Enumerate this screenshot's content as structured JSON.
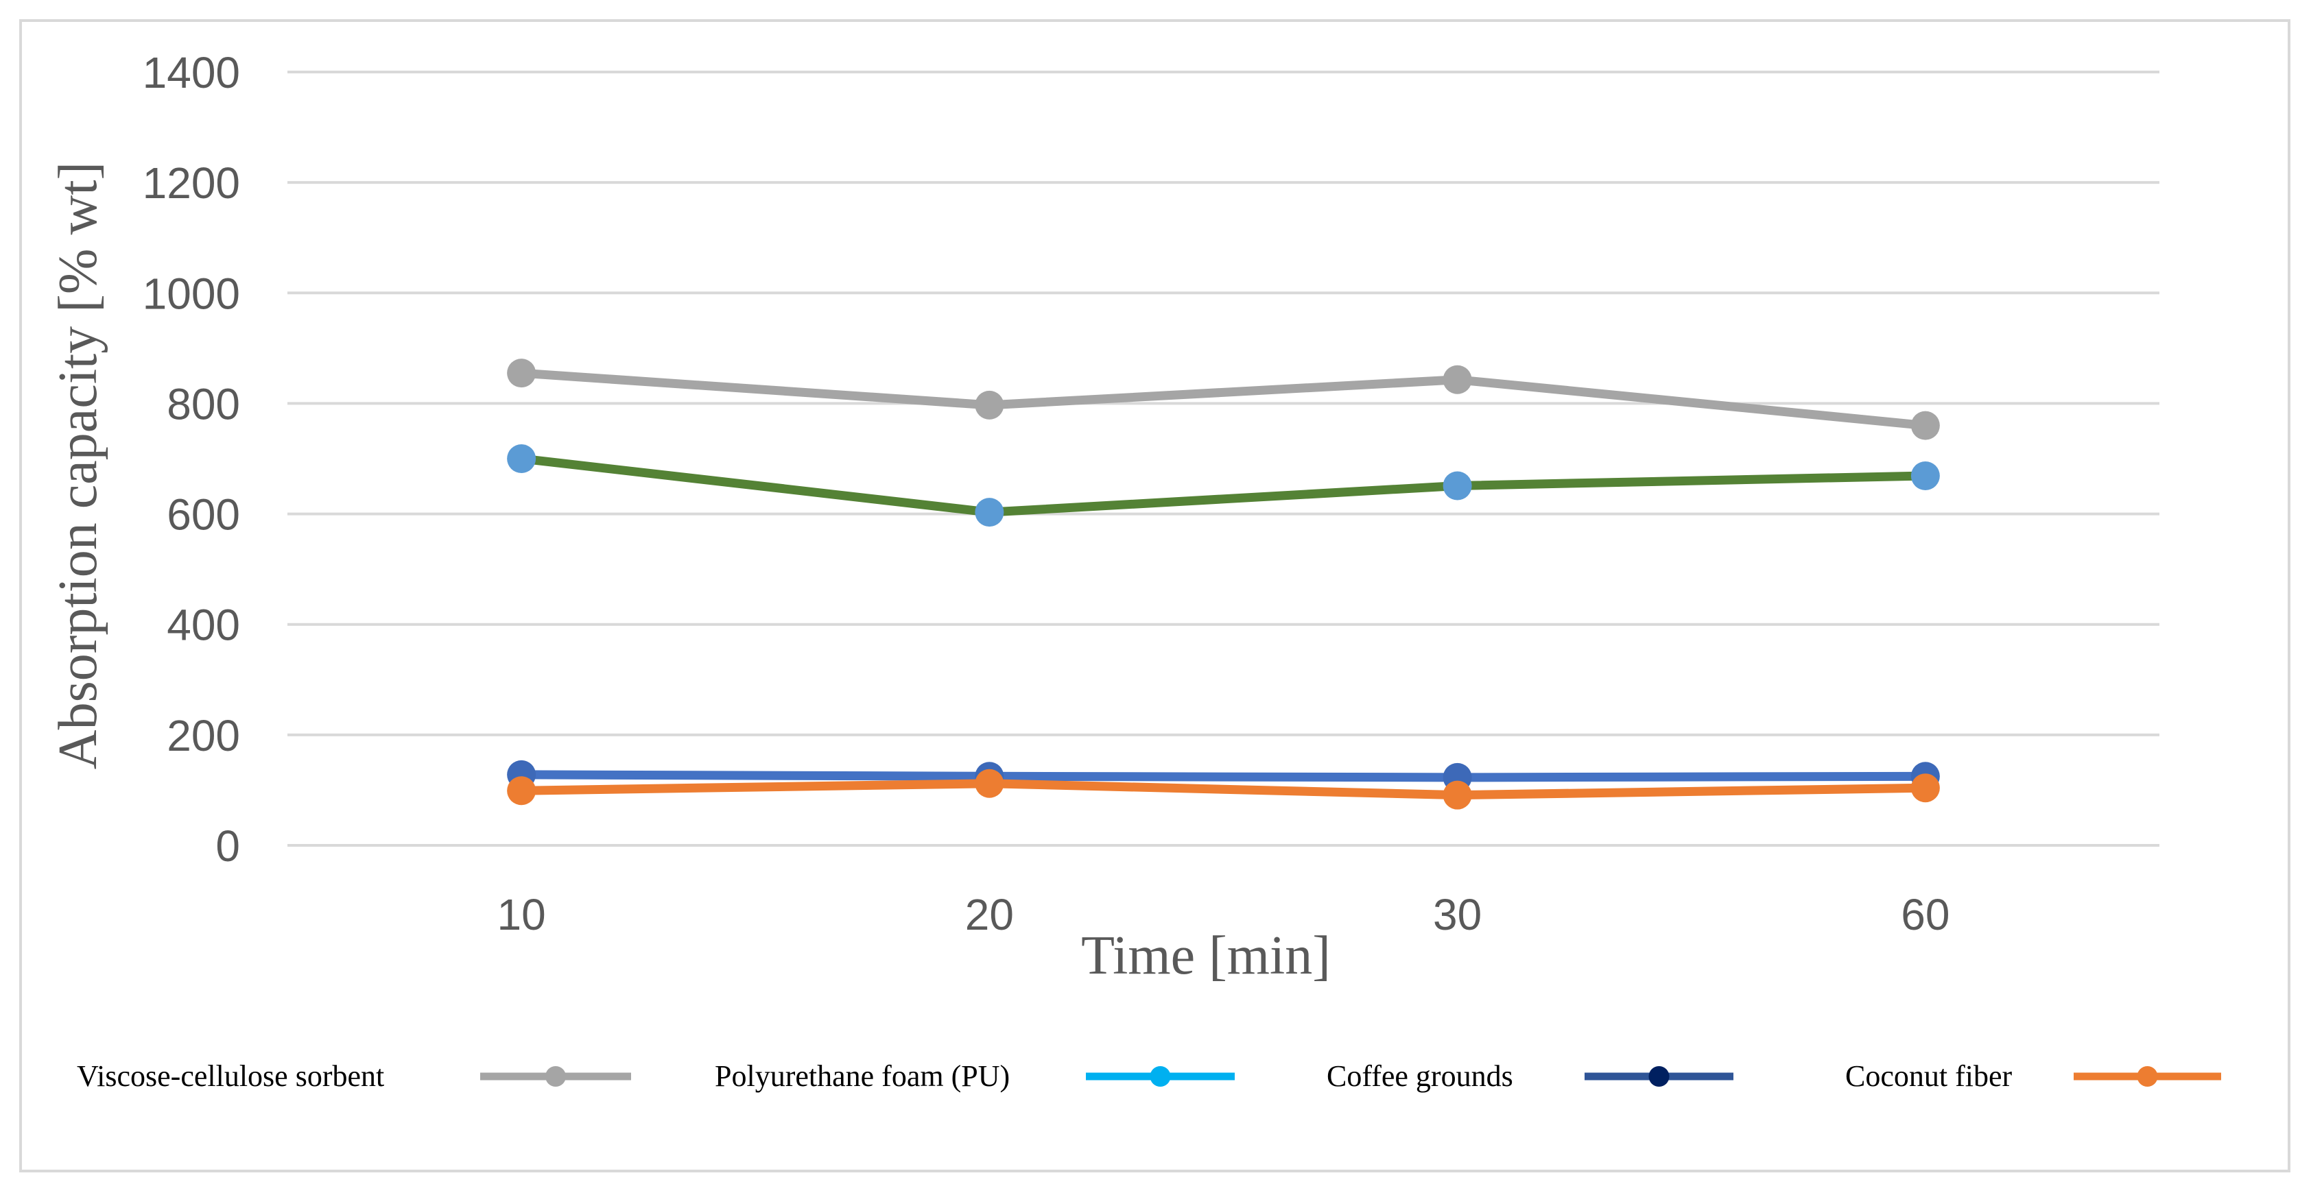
{
  "chart_data": {
    "type": "line",
    "title": "",
    "xlabel": "Time [min]",
    "ylabel": "Absorption capacity [% wt]",
    "categories": [
      "10",
      "20",
      "30",
      "60"
    ],
    "ylim": [
      0,
      1400
    ],
    "yticks": [
      0,
      200,
      400,
      600,
      800,
      1000,
      1200,
      1400
    ],
    "grid": true,
    "legend": "bottom",
    "series": [
      {
        "name": "Viscose-cellulose sorbent",
        "values": [
          855,
          797,
          843,
          760
        ],
        "line_color": "#a5a5a5",
        "marker_color": "#a5a5a5",
        "legend_line_color": "#a5a5a5",
        "legend_marker_color": "#a5a5a5"
      },
      {
        "name": "Polyurethane foam (PU)",
        "values": [
          700,
          603,
          651,
          669
        ],
        "line_color": "#548235",
        "marker_color": "#5b9bd5",
        "legend_line_color": "#00b0f0",
        "legend_marker_color": "#00b0f0"
      },
      {
        "name": "Coffee grounds",
        "values": [
          128,
          125,
          123,
          125
        ],
        "line_color": "#4472c4",
        "marker_color": "#3d69b8",
        "legend_line_color": "#2f5597",
        "legend_marker_color": "#002060"
      },
      {
        "name": "Coconut fiber",
        "values": [
          99,
          112,
          91,
          104
        ],
        "line_color": "#ed7d31",
        "marker_color": "#ed7d31",
        "legend_line_color": "#ed7d31",
        "legend_marker_color": "#ed7d31"
      }
    ]
  },
  "style": {
    "grid_color": "#d9d9d9",
    "frame_color": "#d9d9d9",
    "axis_text_color": "#595959",
    "legend_text_color": "#000000"
  }
}
